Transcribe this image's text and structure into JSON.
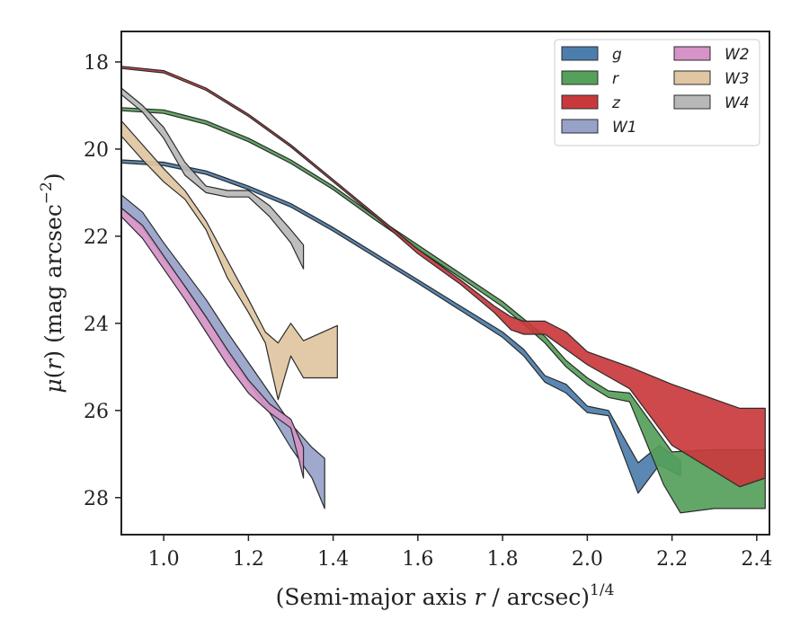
{
  "chart_data": {
    "type": "area",
    "xlabel_main": "(Semi-major axis ",
    "xlabel_var": "r",
    "xlabel_tail": " / arcsec)",
    "xlabel_exp": "1/4",
    "ylabel_mu": "μ",
    "ylabel_open": "(",
    "ylabel_var": "r",
    "ylabel_close": ") (mag arcsec",
    "ylabel_exp": "−2",
    "ylabel_end": ")",
    "xlim": [
      0.9,
      2.43
    ],
    "ylim": [
      28.85,
      17.3
    ],
    "y_inverted": true,
    "grid": false,
    "legend_position": "top-right",
    "xticks": [
      1.0,
      1.2,
      1.4,
      1.6,
      1.8,
      2.0,
      2.2,
      2.4
    ],
    "xtick_labels": [
      "1.0",
      "1.2",
      "1.4",
      "1.6",
      "1.8",
      "2.0",
      "2.2",
      "2.4"
    ],
    "yticks": [
      18,
      20,
      22,
      24,
      26,
      28
    ],
    "ytick_labels": [
      "18",
      "20",
      "22",
      "24",
      "26",
      "28"
    ],
    "series": [
      {
        "name": "g",
        "color": "#4c7ead",
        "upper": [
          [
            0.9,
            20.25
          ],
          [
            1.0,
            20.3
          ],
          [
            1.1,
            20.5
          ],
          [
            1.2,
            20.85
          ],
          [
            1.3,
            21.25
          ],
          [
            1.4,
            21.8
          ],
          [
            1.5,
            22.4
          ],
          [
            1.6,
            23.0
          ],
          [
            1.7,
            23.6
          ],
          [
            1.8,
            24.2
          ],
          [
            1.85,
            24.6
          ],
          [
            1.9,
            25.2
          ],
          [
            1.95,
            25.4
          ],
          [
            2.0,
            25.9
          ],
          [
            2.05,
            26.0
          ],
          [
            2.12,
            27.2
          ],
          [
            2.17,
            26.8
          ],
          [
            2.22,
            27.15
          ]
        ],
        "lower": [
          [
            0.9,
            20.32
          ],
          [
            1.0,
            20.38
          ],
          [
            1.1,
            20.58
          ],
          [
            1.2,
            20.93
          ],
          [
            1.3,
            21.33
          ],
          [
            1.4,
            21.88
          ],
          [
            1.5,
            22.48
          ],
          [
            1.6,
            23.08
          ],
          [
            1.7,
            23.7
          ],
          [
            1.8,
            24.32
          ],
          [
            1.85,
            24.75
          ],
          [
            1.9,
            25.35
          ],
          [
            1.95,
            25.6
          ],
          [
            2.0,
            26.05
          ],
          [
            2.05,
            26.12
          ],
          [
            2.12,
            27.9
          ],
          [
            2.17,
            27.25
          ],
          [
            2.22,
            27.5
          ]
        ]
      },
      {
        "name": "r",
        "color": "#55a05a",
        "upper": [
          [
            0.9,
            19.05
          ],
          [
            1.0,
            19.1
          ],
          [
            1.1,
            19.35
          ],
          [
            1.2,
            19.75
          ],
          [
            1.3,
            20.25
          ],
          [
            1.4,
            20.85
          ],
          [
            1.5,
            21.55
          ],
          [
            1.6,
            22.2
          ],
          [
            1.7,
            22.85
          ],
          [
            1.8,
            23.5
          ],
          [
            1.85,
            23.9
          ],
          [
            1.9,
            24.3
          ],
          [
            1.95,
            24.85
          ],
          [
            2.0,
            25.25
          ],
          [
            2.05,
            25.55
          ],
          [
            2.1,
            25.6
          ],
          [
            2.2,
            26.95
          ],
          [
            2.3,
            26.9
          ],
          [
            2.42,
            26.9
          ]
        ],
        "lower": [
          [
            0.9,
            19.12
          ],
          [
            1.0,
            19.18
          ],
          [
            1.1,
            19.43
          ],
          [
            1.2,
            19.83
          ],
          [
            1.3,
            20.33
          ],
          [
            1.4,
            20.93
          ],
          [
            1.5,
            21.63
          ],
          [
            1.6,
            22.3
          ],
          [
            1.7,
            22.95
          ],
          [
            1.8,
            23.62
          ],
          [
            1.85,
            24.02
          ],
          [
            1.9,
            24.45
          ],
          [
            1.95,
            25.0
          ],
          [
            2.0,
            25.4
          ],
          [
            2.05,
            25.7
          ],
          [
            2.1,
            25.8
          ],
          [
            2.18,
            27.7
          ],
          [
            2.22,
            28.35
          ],
          [
            2.3,
            28.25
          ],
          [
            2.42,
            28.25
          ]
        ]
      },
      {
        "name": "z",
        "color": "#c9393c",
        "upper": [
          [
            0.9,
            18.1
          ],
          [
            1.0,
            18.2
          ],
          [
            1.1,
            18.6
          ],
          [
            1.2,
            19.2
          ],
          [
            1.3,
            19.9
          ],
          [
            1.4,
            20.7
          ],
          [
            1.5,
            21.5
          ],
          [
            1.6,
            22.3
          ],
          [
            1.7,
            23.0
          ],
          [
            1.78,
            23.6
          ],
          [
            1.82,
            23.85
          ],
          [
            1.85,
            23.95
          ],
          [
            1.9,
            23.95
          ],
          [
            1.95,
            24.2
          ],
          [
            2.0,
            24.65
          ],
          [
            2.1,
            25.0
          ],
          [
            2.2,
            25.4
          ],
          [
            2.36,
            25.95
          ],
          [
            2.42,
            25.95
          ]
        ],
        "lower": [
          [
            0.9,
            18.15
          ],
          [
            1.0,
            18.25
          ],
          [
            1.1,
            18.65
          ],
          [
            1.2,
            19.25
          ],
          [
            1.3,
            19.95
          ],
          [
            1.4,
            20.75
          ],
          [
            1.5,
            21.55
          ],
          [
            1.6,
            22.4
          ],
          [
            1.7,
            23.1
          ],
          [
            1.78,
            23.75
          ],
          [
            1.82,
            24.15
          ],
          [
            1.85,
            24.25
          ],
          [
            1.9,
            24.25
          ],
          [
            1.95,
            24.6
          ],
          [
            2.0,
            24.95
          ],
          [
            2.1,
            25.5
          ],
          [
            2.2,
            26.8
          ],
          [
            2.36,
            27.75
          ],
          [
            2.42,
            27.55
          ]
        ]
      },
      {
        "name": "W1",
        "color": "#97a2c9",
        "upper": [
          [
            0.9,
            21.05
          ],
          [
            0.95,
            21.45
          ],
          [
            1.0,
            22.15
          ],
          [
            1.05,
            22.8
          ],
          [
            1.1,
            23.45
          ],
          [
            1.15,
            24.2
          ],
          [
            1.2,
            24.9
          ],
          [
            1.25,
            25.6
          ],
          [
            1.3,
            26.3
          ],
          [
            1.35,
            26.85
          ],
          [
            1.38,
            27.1
          ]
        ],
        "lower": [
          [
            0.9,
            21.35
          ],
          [
            0.95,
            21.8
          ],
          [
            1.0,
            22.5
          ],
          [
            1.05,
            23.15
          ],
          [
            1.1,
            23.85
          ],
          [
            1.15,
            24.65
          ],
          [
            1.2,
            25.35
          ],
          [
            1.25,
            26.05
          ],
          [
            1.3,
            26.85
          ],
          [
            1.35,
            27.55
          ],
          [
            1.38,
            28.25
          ]
        ]
      },
      {
        "name": "W2",
        "color": "#d593c7",
        "upper": [
          [
            0.9,
            21.35
          ],
          [
            0.95,
            21.75
          ],
          [
            1.0,
            22.45
          ],
          [
            1.05,
            23.15
          ],
          [
            1.1,
            23.85
          ],
          [
            1.15,
            24.6
          ],
          [
            1.2,
            25.3
          ],
          [
            1.25,
            25.85
          ],
          [
            1.3,
            26.2
          ],
          [
            1.33,
            26.85
          ]
        ],
        "lower": [
          [
            0.9,
            21.55
          ],
          [
            0.95,
            22.05
          ],
          [
            1.0,
            22.75
          ],
          [
            1.05,
            23.45
          ],
          [
            1.1,
            24.2
          ],
          [
            1.15,
            24.95
          ],
          [
            1.2,
            25.6
          ],
          [
            1.25,
            26.05
          ],
          [
            1.3,
            26.4
          ],
          [
            1.33,
            27.55
          ]
        ]
      },
      {
        "name": "W3",
        "color": "#e0c6a2",
        "upper": [
          [
            0.9,
            19.35
          ],
          [
            0.95,
            19.9
          ],
          [
            1.0,
            20.45
          ],
          [
            1.05,
            20.95
          ],
          [
            1.1,
            21.65
          ],
          [
            1.15,
            22.55
          ],
          [
            1.2,
            23.45
          ],
          [
            1.24,
            24.2
          ],
          [
            1.27,
            24.45
          ],
          [
            1.3,
            24.0
          ],
          [
            1.33,
            24.4
          ],
          [
            1.41,
            24.05
          ]
        ],
        "lower": [
          [
            0.9,
            19.7
          ],
          [
            0.95,
            20.25
          ],
          [
            1.0,
            20.75
          ],
          [
            1.05,
            21.15
          ],
          [
            1.1,
            21.85
          ],
          [
            1.15,
            22.95
          ],
          [
            1.2,
            23.75
          ],
          [
            1.24,
            24.45
          ],
          [
            1.27,
            25.75
          ],
          [
            1.3,
            24.75
          ],
          [
            1.33,
            25.25
          ],
          [
            1.41,
            25.25
          ]
        ]
      },
      {
        "name": "W4",
        "color": "#b8b8b8",
        "upper": [
          [
            0.9,
            18.6
          ],
          [
            0.95,
            19.0
          ],
          [
            1.0,
            19.5
          ],
          [
            1.05,
            20.3
          ],
          [
            1.1,
            20.85
          ],
          [
            1.15,
            20.95
          ],
          [
            1.2,
            20.95
          ],
          [
            1.25,
            21.3
          ],
          [
            1.3,
            21.85
          ],
          [
            1.33,
            22.2
          ]
        ],
        "lower": [
          [
            0.9,
            18.75
          ],
          [
            0.95,
            19.15
          ],
          [
            1.0,
            19.75
          ],
          [
            1.05,
            20.6
          ],
          [
            1.1,
            21.0
          ],
          [
            1.15,
            21.1
          ],
          [
            1.2,
            21.1
          ],
          [
            1.25,
            21.55
          ],
          [
            1.3,
            22.15
          ],
          [
            1.33,
            22.75
          ]
        ]
      }
    ],
    "legend": {
      "columns": 2,
      "column_1": [
        "g",
        "r",
        "z",
        "W1"
      ],
      "column_2": [
        "W2",
        "W3",
        "W4"
      ]
    }
  }
}
